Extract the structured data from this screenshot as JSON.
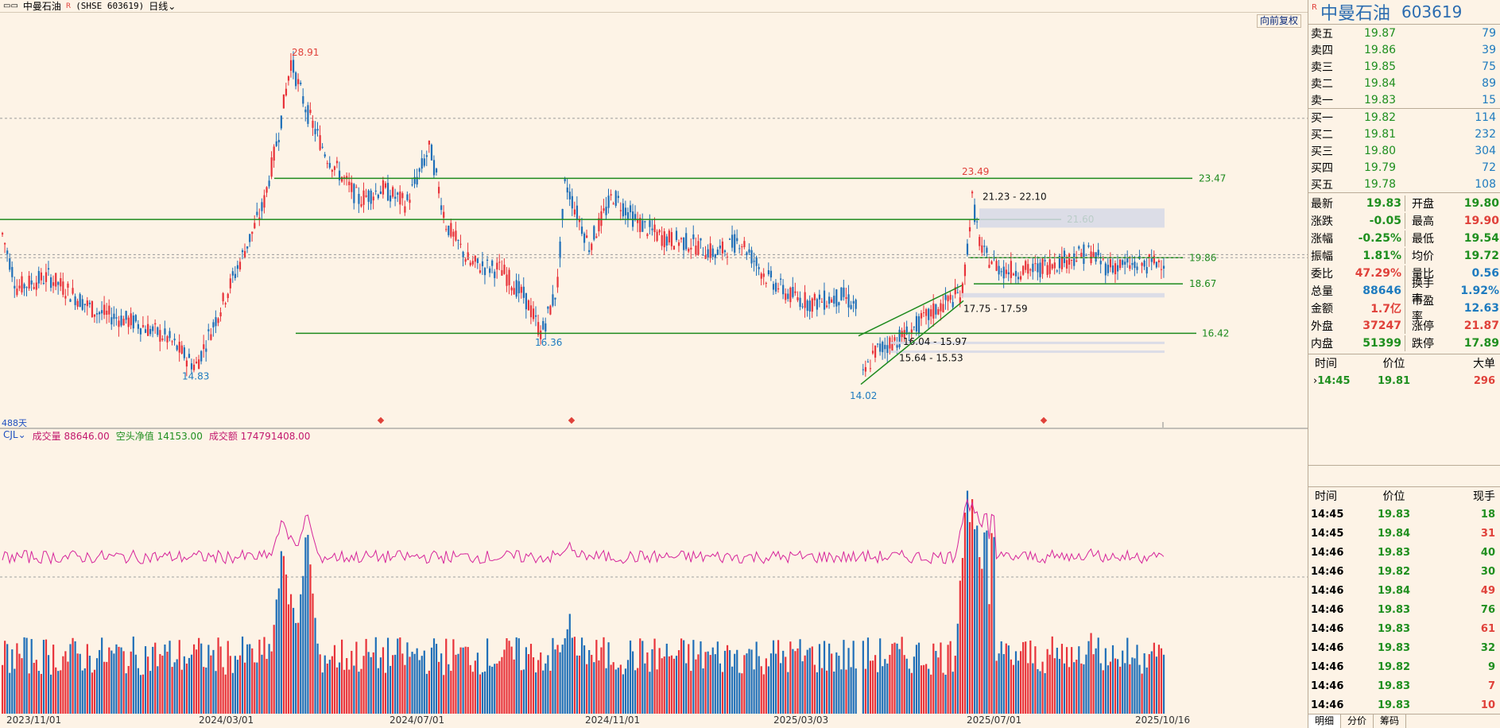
{
  "titlebar": {
    "window_icon": "window-controls-icon",
    "stock_name": "中曼石油",
    "r_mark": "R",
    "exchange_code": "(SHSE 603619)",
    "period": "日线",
    "period_arrow": "chevron-down-icon"
  },
  "main_chart": {
    "restore_button": "向前复权",
    "days_label": "488天",
    "price_annotations": [
      "28.91",
      "23.49",
      "16.36",
      "14.83",
      "14.02"
    ],
    "levels": [
      "23.47",
      "21.60",
      "19.86",
      "18.67",
      "16.42"
    ],
    "zones": [
      "21.23 - 22.10",
      "17.75 - 17.59",
      "16.04 - 15.97",
      "15.64 - 15.53"
    ],
    "y_range": [
      13.0,
      30.5
    ],
    "gridlines": [
      26.2,
      20.0
    ],
    "colors": {
      "up": "#e8333a",
      "down": "#1f6fb8",
      "level": "#1d8a1d",
      "zone": "#d6d8e6",
      "grid": "#9a9a9a"
    }
  },
  "volume_panel": {
    "indicator": "CJL",
    "volume_label": "成交量 88646.00",
    "net_short_label": "空头净值 14153.00",
    "amount_label": "成交额 174791408.00"
  },
  "date_axis": [
    "2023/11/01",
    "2024/03/01",
    "2024/07/01",
    "2024/11/01",
    "2025/03/03",
    "2025/07/01",
    "2025/10/16"
  ],
  "side": {
    "header": {
      "r_mark": "R",
      "name": "中曼石油",
      "code": "603619"
    },
    "asks": [
      {
        "label": "卖五",
        "price": "19.87",
        "qty": "79"
      },
      {
        "label": "卖四",
        "price": "19.86",
        "qty": "39"
      },
      {
        "label": "卖三",
        "price": "19.85",
        "qty": "75"
      },
      {
        "label": "卖二",
        "price": "19.84",
        "qty": "89"
      },
      {
        "label": "卖一",
        "price": "19.83",
        "qty": "15"
      }
    ],
    "bids": [
      {
        "label": "买一",
        "price": "19.82",
        "qty": "114"
      },
      {
        "label": "买二",
        "price": "19.81",
        "qty": "232"
      },
      {
        "label": "买三",
        "price": "19.80",
        "qty": "304"
      },
      {
        "label": "买四",
        "price": "19.79",
        "qty": "72"
      },
      {
        "label": "买五",
        "price": "19.78",
        "qty": "108"
      }
    ],
    "stats": [
      {
        "k": "最新",
        "v": "19.83",
        "vc": "g",
        "k2": "开盘",
        "v2": "19.80",
        "v2c": "g"
      },
      {
        "k": "涨跌",
        "v": "-0.05",
        "vc": "g",
        "k2": "最高",
        "v2": "19.90",
        "v2c": "rd"
      },
      {
        "k": "涨幅",
        "v": "-0.25%",
        "vc": "g",
        "k2": "最低",
        "v2": "19.54",
        "v2c": "g"
      },
      {
        "k": "振幅",
        "v": "1.81%",
        "vc": "g",
        "k2": "均价",
        "v2": "19.72",
        "v2c": "g"
      },
      {
        "k": "委比",
        "v": "47.29%",
        "vc": "rd",
        "k2": "量比",
        "v2": "0.56",
        "v2c": "bl"
      },
      {
        "k": "总量",
        "v": "88646",
        "vc": "bl",
        "k2": "换手率",
        "v2": "1.92%",
        "v2c": "bl"
      },
      {
        "k": "金额",
        "v": "1.7亿",
        "vc": "rd",
        "k2": "市盈率",
        "v2": "12.63",
        "v2c": "bl"
      },
      {
        "k": "外盘",
        "v": "37247",
        "vc": "rd",
        "k2": "涨停",
        "v2": "21.87",
        "v2c": "rd"
      },
      {
        "k": "内盘",
        "v": "51399",
        "vc": "g",
        "k2": "跌停",
        "v2": "17.89",
        "v2c": "g"
      }
    ],
    "big_order_head": [
      "时间",
      "价位",
      "大单"
    ],
    "big_orders": [
      {
        "t": "14:45",
        "p": "19.81",
        "q": "296"
      }
    ],
    "ticks_head": [
      "时间",
      "价位",
      "现手"
    ],
    "ticks": [
      {
        "t": "14:45",
        "p": "19.83",
        "pc": "g",
        "q": "18",
        "qc": "g"
      },
      {
        "t": "14:45",
        "p": "19.84",
        "pc": "g",
        "q": "31",
        "qc": "rd"
      },
      {
        "t": "14:46",
        "p": "19.83",
        "pc": "g",
        "q": "40",
        "qc": "g"
      },
      {
        "t": "14:46",
        "p": "19.82",
        "pc": "g",
        "q": "30",
        "qc": "g"
      },
      {
        "t": "14:46",
        "p": "19.84",
        "pc": "g",
        "q": "49",
        "qc": "rd"
      },
      {
        "t": "14:46",
        "p": "19.83",
        "pc": "g",
        "q": "76",
        "qc": "g"
      },
      {
        "t": "14:46",
        "p": "19.83",
        "pc": "g",
        "q": "61",
        "qc": "rd"
      },
      {
        "t": "14:46",
        "p": "19.83",
        "pc": "g",
        "q": "32",
        "qc": "g"
      },
      {
        "t": "14:46",
        "p": "19.82",
        "pc": "g",
        "q": "9",
        "qc": "g"
      },
      {
        "t": "14:46",
        "p": "19.83",
        "pc": "g",
        "q": "7",
        "qc": "rd"
      },
      {
        "t": "14:46",
        "p": "19.83",
        "pc": "g",
        "q": "10",
        "qc": "rd"
      }
    ],
    "tabs": [
      "明细",
      "分价",
      "筹码"
    ]
  }
}
